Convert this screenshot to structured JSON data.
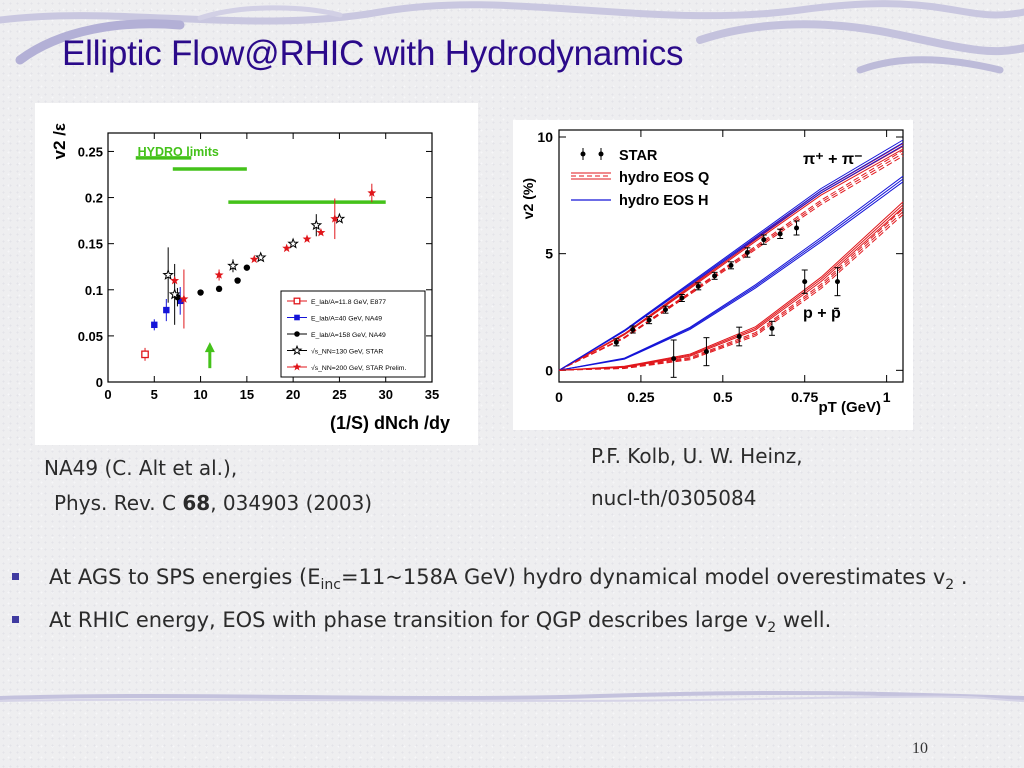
{
  "slide": {
    "title": "Elliptic Flow@RHIC with Hydrodynamics",
    "page_number": "10"
  },
  "left_caption": {
    "line1": "NA49 (C. Alt et al.),",
    "line2_prefix": "Phys. Rev. C ",
    "line2_bold": "68",
    "line2_suffix": ",  034903 (2003)"
  },
  "right_caption": {
    "line1": "P.F. Kolb, U. W. Heinz,",
    "line2": "nucl-th/0305084"
  },
  "bullets": [
    {
      "parts": [
        "At AGS to SPS energies (E",
        "inc",
        "=11~158A GeV) hydro dynamical model overestimates v",
        "2",
        " ."
      ]
    },
    {
      "parts": [
        "At RHIC energy, EOS with phase transition for QGP describes large v",
        "2",
        " well."
      ]
    }
  ],
  "colors": {
    "title": "#2b0a8a",
    "bullet": "#3f3aa0",
    "hydro_limit": "#44c21a",
    "red": "#e0161b",
    "blue": "#1414d8"
  },
  "chart_data": [
    {
      "type": "scatter",
      "ylabel": "v2 /ε",
      "xlabel": "(1/S) dNch /dy",
      "xlim": [
        0,
        35
      ],
      "ylim": [
        0,
        0.27
      ],
      "x_ticks": [
        0,
        5,
        10,
        15,
        20,
        25,
        30,
        35
      ],
      "y_ticks": [
        0,
        0.05,
        0.1,
        0.15,
        0.2,
        0.25
      ],
      "y_tick_labels": [
        "0",
        "0.05",
        "0.1",
        "0.15",
        "0.2",
        "0.25"
      ],
      "annotations": {
        "hydro_label": "HYDRO  limits"
      },
      "hydro_limits": [
        {
          "x": [
            3,
            9
          ],
          "y": 0.243
        },
        {
          "x": [
            7,
            15
          ],
          "y": 0.231
        },
        {
          "x": [
            13,
            30
          ],
          "y": 0.195
        }
      ],
      "arrow": {
        "x": 11,
        "y_from": 0.015,
        "y_to": 0.04
      },
      "series": [
        {
          "name": "E_lab/A=11.8 GeV, E877",
          "marker": "open-square",
          "color": "#e0161b",
          "points": [
            {
              "x": 4,
              "y": 0.03,
              "err": 0.007
            }
          ]
        },
        {
          "name": "E_lab/A=40 GeV, NA49",
          "marker": "filled-square",
          "color": "#1414d8",
          "points": [
            {
              "x": 5,
              "y": 0.062,
              "err": 0.006
            },
            {
              "x": 6.3,
              "y": 0.078,
              "err": 0.012
            },
            {
              "x": 7.8,
              "y": 0.088,
              "err": 0.015
            }
          ]
        },
        {
          "name": "E_lab/A=158 GeV, NA49",
          "marker": "filled-circle",
          "color": "#000000",
          "points": [
            {
              "x": 7.5,
              "y": 0.092,
              "err": 0.01
            },
            {
              "x": 10,
              "y": 0.097,
              "err": 0
            },
            {
              "x": 12,
              "y": 0.101,
              "err": 0
            },
            {
              "x": 14,
              "y": 0.11,
              "err": 0
            },
            {
              "x": 15,
              "y": 0.124,
              "err": 0
            }
          ]
        },
        {
          "name": "√s_NN=130 GeV, STAR",
          "marker": "open-star",
          "color": "#000000",
          "points": [
            {
              "x": 6.5,
              "y": 0.116,
              "err": 0.03
            },
            {
              "x": 7.2,
              "y": 0.095,
              "err": 0.033
            },
            {
              "x": 13.5,
              "y": 0.126,
              "err": 0.007
            },
            {
              "x": 16.5,
              "y": 0.135,
              "err": 0
            },
            {
              "x": 20,
              "y": 0.15,
              "err": 0
            },
            {
              "x": 22.5,
              "y": 0.17,
              "err": 0.012
            },
            {
              "x": 25,
              "y": 0.177,
              "err": 0
            }
          ]
        },
        {
          "name": "√s_NN=200 GeV, STAR Prelim.",
          "marker": "filled-star",
          "color": "#e0161b",
          "points": [
            {
              "x": 7.2,
              "y": 0.11,
              "err": 0
            },
            {
              "x": 8.2,
              "y": 0.09,
              "err": 0.032
            },
            {
              "x": 12,
              "y": 0.116,
              "err": 0.006
            },
            {
              "x": 15.8,
              "y": 0.133,
              "err": 0
            },
            {
              "x": 19.3,
              "y": 0.145,
              "err": 0
            },
            {
              "x": 21.5,
              "y": 0.155,
              "err": 0
            },
            {
              "x": 23,
              "y": 0.162,
              "err": 0
            },
            {
              "x": 24.5,
              "y": 0.177,
              "err": 0.022
            },
            {
              "x": 28.5,
              "y": 0.205,
              "err": 0.01
            }
          ]
        }
      ]
    },
    {
      "type": "line",
      "ylabel": "v2 (%)",
      "xlabel": "pT (GeV)",
      "xlim": [
        0,
        1.05
      ],
      "ylim": [
        -0.5,
        10.3
      ],
      "x_ticks": [
        0,
        0.25,
        0.5,
        0.75,
        1
      ],
      "x_tick_labels": [
        "0",
        "0.25",
        "0.5",
        "0.75",
        "1"
      ],
      "y_ticks": [
        0,
        5,
        10
      ],
      "annotations": {
        "pion_label": "π⁺ + π⁻",
        "proton_label": "p + p̄"
      },
      "legend": [
        "STAR",
        "hydro EOS Q",
        "hydro EOS H"
      ],
      "data_points": {
        "pions": [
          {
            "x": 0.175,
            "y": 1.2,
            "err": 0.15
          },
          {
            "x": 0.225,
            "y": 1.75,
            "err": 0.15
          },
          {
            "x": 0.275,
            "y": 2.15,
            "err": 0.15
          },
          {
            "x": 0.325,
            "y": 2.6,
            "err": 0.15
          },
          {
            "x": 0.375,
            "y": 3.1,
            "err": 0.15
          },
          {
            "x": 0.425,
            "y": 3.6,
            "err": 0.15
          },
          {
            "x": 0.475,
            "y": 4.05,
            "err": 0.15
          },
          {
            "x": 0.525,
            "y": 4.5,
            "err": 0.15
          },
          {
            "x": 0.575,
            "y": 5.05,
            "err": 0.2
          },
          {
            "x": 0.625,
            "y": 5.6,
            "err": 0.2
          },
          {
            "x": 0.675,
            "y": 5.85,
            "err": 0.2
          },
          {
            "x": 0.725,
            "y": 6.1,
            "err": 0.3
          }
        ],
        "protons": [
          {
            "x": 0.35,
            "y": 0.5,
            "err": 0.8
          },
          {
            "x": 0.45,
            "y": 0.8,
            "err": 0.6
          },
          {
            "x": 0.55,
            "y": 1.45,
            "err": 0.4
          },
          {
            "x": 0.65,
            "y": 1.8,
            "err": 0.3
          },
          {
            "x": 0.75,
            "y": 3.8,
            "err": 0.5
          },
          {
            "x": 0.85,
            "y": 3.8,
            "err": 0.6
          }
        ]
      },
      "curves": [
        {
          "name": "hydro EOS Q",
          "group": "pions",
          "style": "solid",
          "color": "#e0161b",
          "points": [
            [
              0,
              0
            ],
            [
              0.2,
              1.55
            ],
            [
              0.4,
              3.55
            ],
            [
              0.6,
              5.6
            ],
            [
              0.8,
              7.6
            ],
            [
              1.05,
              9.6
            ]
          ]
        },
        {
          "name": "hydro EOS Q",
          "group": "pions",
          "style": "dashed",
          "color": "#e0161b",
          "points": [
            [
              0,
              0
            ],
            [
              0.2,
              1.4
            ],
            [
              0.4,
              3.3
            ],
            [
              0.6,
              5.25
            ],
            [
              0.8,
              7.2
            ],
            [
              1.05,
              9.3
            ]
          ]
        },
        {
          "name": "hydro EOS H",
          "group": "pions",
          "style": "solid",
          "color": "#1414d8",
          "points": [
            [
              0,
              0
            ],
            [
              0.2,
              1.7
            ],
            [
              0.4,
              3.7
            ],
            [
              0.6,
              5.7
            ],
            [
              0.8,
              7.7
            ],
            [
              1.05,
              9.75
            ]
          ]
        },
        {
          "name": "hydro EOS H",
          "group": "protons",
          "style": "solid",
          "color": "#1414d8",
          "points": [
            [
              0,
              0
            ],
            [
              0.2,
              0.5
            ],
            [
              0.4,
              1.8
            ],
            [
              0.6,
              3.6
            ],
            [
              0.8,
              5.6
            ],
            [
              1.05,
              8.2
            ]
          ]
        },
        {
          "name": "hydro EOS Q",
          "group": "protons",
          "style": "solid",
          "color": "#e0161b",
          "points": [
            [
              0,
              0
            ],
            [
              0.2,
              0.15
            ],
            [
              0.4,
              0.65
            ],
            [
              0.6,
              1.8
            ],
            [
              0.8,
              3.9
            ],
            [
              1.05,
              7.1
            ]
          ]
        },
        {
          "name": "hydro EOS Q",
          "group": "protons",
          "style": "dashed",
          "color": "#e0161b",
          "points": [
            [
              0,
              0
            ],
            [
              0.2,
              0.1
            ],
            [
              0.4,
              0.5
            ],
            [
              0.6,
              1.55
            ],
            [
              0.8,
              3.6
            ],
            [
              1.05,
              6.8
            ]
          ]
        }
      ]
    }
  ]
}
